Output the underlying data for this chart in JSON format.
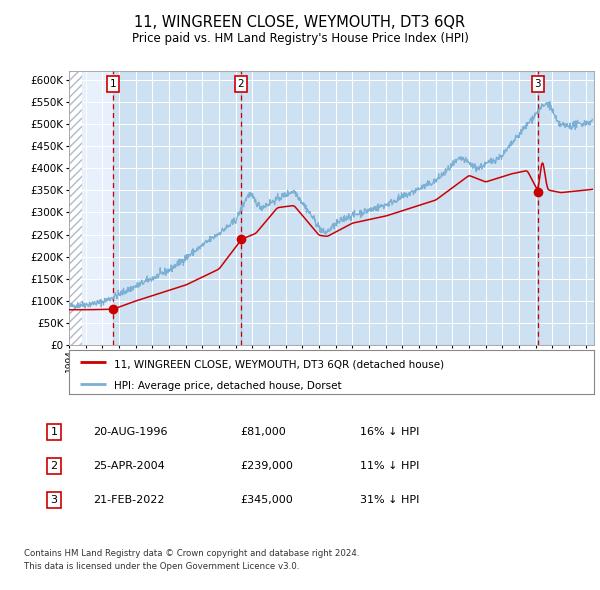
{
  "title": "11, WINGREEN CLOSE, WEYMOUTH, DT3 6QR",
  "subtitle": "Price paid vs. HM Land Registry's House Price Index (HPI)",
  "xlim_start": 1994.0,
  "xlim_end": 2025.5,
  "ylim_min": 0,
  "ylim_max": 620000,
  "yticks": [
    0,
    50000,
    100000,
    150000,
    200000,
    250000,
    300000,
    350000,
    400000,
    450000,
    500000,
    550000,
    600000
  ],
  "ytick_labels": [
    "£0",
    "£50K",
    "£100K",
    "£150K",
    "£200K",
    "£250K",
    "£300K",
    "£350K",
    "£400K",
    "£450K",
    "£500K",
    "£550K",
    "£600K"
  ],
  "hpi_color": "#7bafd4",
  "price_color": "#cc0000",
  "sale1_year": 1996.639,
  "sale1_price": 81000,
  "sale2_year": 2004.319,
  "sale2_price": 239000,
  "sale3_year": 2022.13,
  "sale3_price": 345000,
  "legend_label_price": "11, WINGREEN CLOSE, WEYMOUTH, DT3 6QR (detached house)",
  "legend_label_hpi": "HPI: Average price, detached house, Dorset",
  "table_rows": [
    {
      "num": "1",
      "date": "20-AUG-1996",
      "price": "£81,000",
      "hpi": "16% ↓ HPI"
    },
    {
      "num": "2",
      "date": "25-APR-2004",
      "price": "£239,000",
      "hpi": "11% ↓ HPI"
    },
    {
      "num": "3",
      "date": "21-FEB-2022",
      "price": "£345,000",
      "hpi": "31% ↓ HPI"
    }
  ],
  "footnote1": "Contains HM Land Registry data © Crown copyright and database right 2024.",
  "footnote2": "This data is licensed under the Open Government Licence v3.0."
}
